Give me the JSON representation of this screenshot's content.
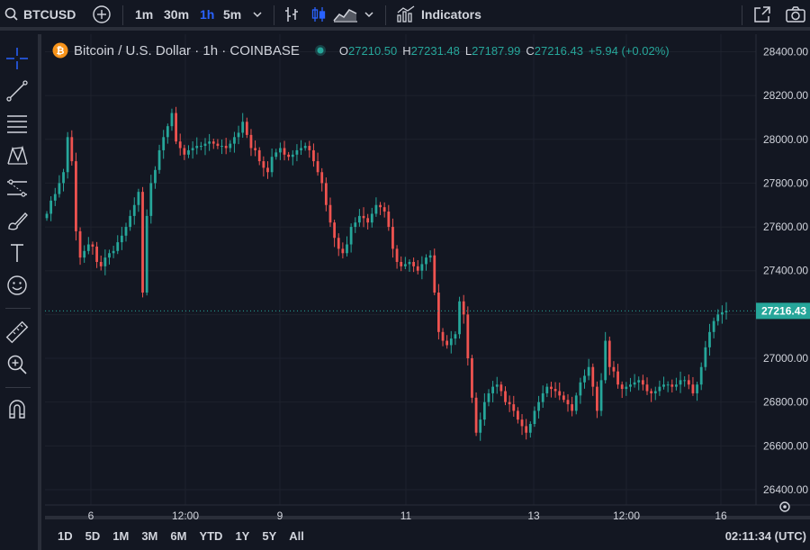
{
  "toolbar": {
    "symbol": "BTCUSD",
    "intervals": [
      "1m",
      "30m",
      "1h",
      "5m"
    ],
    "active_interval": "1h",
    "indicators_label": "Indicators"
  },
  "legend": {
    "title": "Bitcoin / U.S. Dollar · 1h · COINBASE",
    "open_label": "O",
    "open": "27210.50",
    "high_label": "H",
    "high": "27231.48",
    "low_label": "L",
    "low": "27187.99",
    "close_label": "C",
    "close": "27216.43",
    "change": "+5.94 (+0.02%)"
  },
  "colors": {
    "up": "#26a69a",
    "down": "#ef5350",
    "accent": "#2962ff",
    "last_price_bg": "#26a69a"
  },
  "bottom": {
    "ranges": [
      "1D",
      "5D",
      "1M",
      "3M",
      "6M",
      "YTD",
      "1Y",
      "5Y",
      "All"
    ],
    "clock": "02:11:34 (UTC)"
  },
  "chart_data": {
    "type": "candlestick",
    "y_ticks": [
      "28400.00",
      "28200.00",
      "28000.00",
      "27800.00",
      "27600.00",
      "27400.00",
      "27200.00",
      "27000.00",
      "26800.00",
      "26600.00",
      "26400.00"
    ],
    "ylim": [
      26330,
      28480
    ],
    "x_ticks": [
      "6",
      "12:00",
      "9",
      "11",
      "13",
      "12:00",
      "16"
    ],
    "last_price": 27216.43,
    "closes": [
      27660,
      27720,
      27750,
      27800,
      27850,
      28010,
      27900,
      27580,
      27460,
      27490,
      27520,
      27510,
      27440,
      27420,
      27460,
      27480,
      27490,
      27530,
      27560,
      27600,
      27650,
      27700,
      27760,
      27300,
      27650,
      27800,
      27860,
      27950,
      28010,
      28060,
      28120,
      27990,
      27960,
      27930,
      27950,
      27960,
      27970,
      27970,
      27980,
      27990,
      27980,
      27970,
      27970,
      27960,
      27980,
      28010,
      28030,
      28080,
      28020,
      27960,
      27950,
      27900,
      27870,
      27850,
      27920,
      27940,
      27960,
      27930,
      27920,
      27930,
      27950,
      27960,
      27970,
      27950,
      27900,
      27850,
      27800,
      27700,
      27620,
      27550,
      27500,
      27480,
      27520,
      27600,
      27620,
      27650,
      27640,
      27620,
      27660,
      27700,
      27690,
      27670,
      27600,
      27500,
      27440,
      27420,
      27430,
      27440,
      27420,
      27400,
      27430,
      27460,
      27470,
      27300,
      27120,
      27080,
      27060,
      27090,
      27110,
      27260,
      27200,
      27000,
      26820,
      26660,
      26720,
      26800,
      26840,
      26870,
      26880,
      26850,
      26800,
      26790,
      26760,
      26720,
      26690,
      26660,
      26700,
      26760,
      26800,
      26840,
      26870,
      26860,
      26850,
      26830,
      26810,
      26790,
      26760,
      26830,
      26890,
      26920,
      26960,
      26870,
      26760,
      26900,
      27080,
      26960,
      26940,
      26880,
      26860,
      26870,
      26880,
      26890,
      26900,
      26880,
      26850,
      26840,
      26850,
      26870,
      26880,
      26880,
      26870,
      26880,
      26900,
      26900,
      26880,
      26840,
      26880,
      26960,
      27050,
      27120,
      27170,
      27200,
      27210,
      27216
    ]
  }
}
